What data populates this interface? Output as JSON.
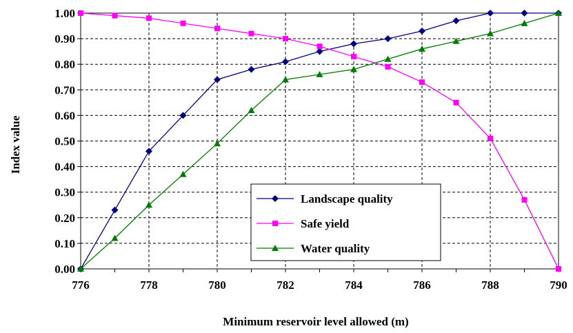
{
  "chart_data": {
    "type": "line",
    "xlabel": "Minimum reservoir level allowed (m)",
    "ylabel": "Index value",
    "x": [
      776,
      777,
      778,
      779,
      780,
      781,
      782,
      783,
      784,
      785,
      786,
      787,
      788,
      789,
      790
    ],
    "xlim": [
      776,
      790
    ],
    "ylim": [
      0,
      1
    ],
    "x_ticks": [
      "776",
      "778",
      "780",
      "782",
      "784",
      "786",
      "788",
      "790"
    ],
    "y_ticks": [
      "0.00",
      "0.10",
      "0.20",
      "0.30",
      "0.40",
      "0.50",
      "0.60",
      "0.70",
      "0.80",
      "0.90",
      "1.00"
    ],
    "grid": true,
    "legend_position": "bottom-center",
    "series": [
      {
        "name": "Landscape quality",
        "color": "#000080",
        "marker": "diamond",
        "values": [
          0.0,
          0.23,
          0.46,
          0.6,
          0.74,
          0.78,
          0.81,
          0.85,
          0.88,
          0.9,
          0.93,
          0.97,
          1.0,
          1.0,
          1.0
        ]
      },
      {
        "name": "Safe yield",
        "color": "#ff00ff",
        "marker": "square",
        "values": [
          1.0,
          0.99,
          0.98,
          0.96,
          0.94,
          0.92,
          0.9,
          0.87,
          0.83,
          0.79,
          0.73,
          0.65,
          0.51,
          0.27,
          0.0
        ]
      },
      {
        "name": "Water quality",
        "color": "#007a00",
        "marker": "triangle",
        "values": [
          0.0,
          0.12,
          0.25,
          0.37,
          0.49,
          0.62,
          0.74,
          0.76,
          0.78,
          0.82,
          0.86,
          0.89,
          0.92,
          0.96,
          1.0
        ]
      }
    ]
  }
}
